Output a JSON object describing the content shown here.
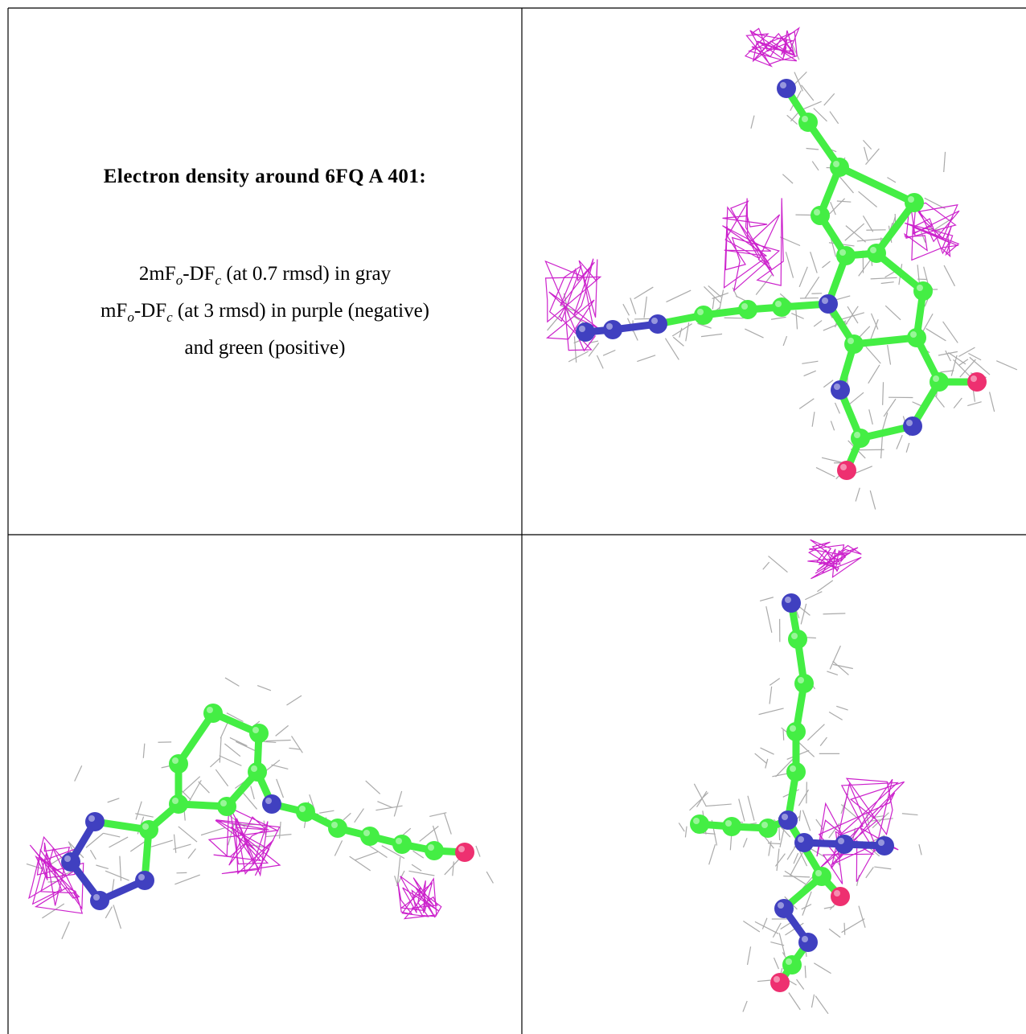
{
  "title": "Electron density around 6FQ A 401:",
  "legend": [
    [
      {
        "t": "2mF"
      },
      {
        "sub": "o"
      },
      {
        "t": "-DF"
      },
      {
        "sub": "c"
      },
      {
        "t": " (at 0.7 rmsd) in gray"
      }
    ],
    [
      {
        "t": "mF"
      },
      {
        "sub": "o"
      },
      {
        "t": "-DF"
      },
      {
        "sub": "c"
      },
      {
        "t": " (at 3 rmsd) in purple (negative)"
      }
    ],
    [
      {
        "t": "and green (positive)"
      }
    ]
  ]
}
